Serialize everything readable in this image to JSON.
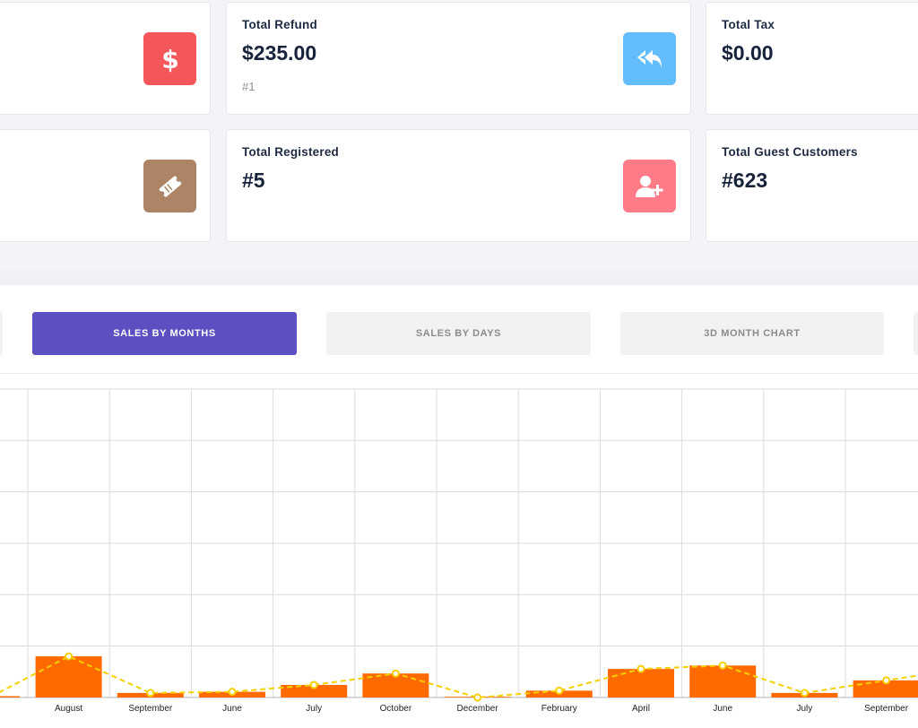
{
  "cards": {
    "refund": {
      "title": "Total Refund",
      "value": "$235.00",
      "sub": "#1"
    },
    "tax": {
      "title": "Total Tax",
      "value": "$0.00"
    },
    "registered": {
      "title": "Total Registered",
      "value": "#5"
    },
    "guests": {
      "title": "Total Guest Customers",
      "value": "#623"
    }
  },
  "icons": {
    "sales": {
      "name": "dollar-icon",
      "color": "#f4575a"
    },
    "refund": {
      "name": "reply-all-icon",
      "color": "#63bdfc"
    },
    "coupon": {
      "name": "ticket-icon",
      "color": "#ad8466"
    },
    "registered": {
      "name": "user-plus-icon",
      "color": "#fe7b87"
    }
  },
  "tabs": [
    {
      "label": "SALES BY MONTHS",
      "active": true
    },
    {
      "label": "SALES BY DAYS",
      "active": false
    },
    {
      "label": "3D MONTH CHART",
      "active": false
    }
  ],
  "chart_data": {
    "type": "bar",
    "categories": [
      "August",
      "September",
      "June",
      "July",
      "October",
      "December",
      "February",
      "April",
      "June",
      "July",
      "September"
    ],
    "series": [
      {
        "type": "bar",
        "color": "#ff6a00",
        "values": [
          18,
          2,
          2.5,
          5.5,
          10.5,
          0,
          3,
          12.5,
          14,
          2,
          7.5
        ]
      },
      {
        "type": "line",
        "color": "#f5d000",
        "values": [
          18,
          2,
          2.5,
          5.5,
          10.5,
          0,
          3,
          12.5,
          14,
          2,
          7.5
        ]
      }
    ],
    "grid": true
  }
}
